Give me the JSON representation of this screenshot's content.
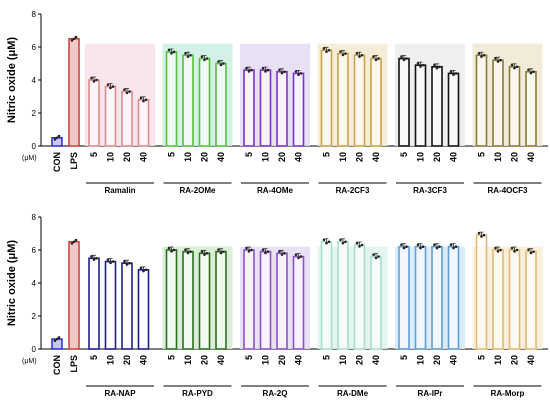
{
  "chart_data": [
    {
      "type": "bar",
      "ylabel": "Nitric oxide (μM)",
      "ylim": [
        0,
        8
      ],
      "yticks": [
        0,
        2,
        4,
        6,
        8
      ],
      "unit_label": "(μM)",
      "controls": [
        {
          "label": "CON",
          "value": 0.5,
          "color": "#2a2ad4",
          "fill": "#c8c8f5"
        },
        {
          "label": "LPS",
          "value": 6.5,
          "color": "#cc3b3b",
          "fill": "#f0c8c8"
        }
      ],
      "concentrations": [
        "5",
        "10",
        "20",
        "40"
      ],
      "groups": [
        {
          "name": "Ramalin",
          "color": "#d98c8c",
          "bg": "#f8e0ea",
          "values": [
            4.0,
            3.6,
            3.3,
            2.8
          ]
        },
        {
          "name": "RA-2OMe",
          "color": "#55c23a",
          "bg": "#ccefe3",
          "values": [
            5.7,
            5.5,
            5.3,
            5.0
          ]
        },
        {
          "name": "RA-4OMe",
          "color": "#7a35c8",
          "bg": "#e4dcf3",
          "values": [
            4.6,
            4.6,
            4.5,
            4.4
          ]
        },
        {
          "name": "RA-2CF3",
          "color": "#c9a44a",
          "bg": "#f5ead2",
          "values": [
            5.8,
            5.6,
            5.5,
            5.3
          ]
        },
        {
          "name": "RA-3CF3",
          "color": "#111111",
          "bg": "#ececec",
          "values": [
            5.3,
            4.9,
            4.8,
            4.4
          ]
        },
        {
          "name": "RA-4OCF3",
          "color": "#8a7a32",
          "bg": "#efe9d3",
          "values": [
            5.5,
            5.2,
            4.8,
            4.5
          ]
        }
      ]
    },
    {
      "type": "bar",
      "ylabel": "Nitric oxide (μM)",
      "ylim": [
        0,
        8
      ],
      "yticks": [
        0,
        2,
        4,
        6,
        8
      ],
      "unit_label": "(μM)",
      "controls": [
        {
          "label": "CON",
          "value": 0.6,
          "color": "#2a2ad4",
          "fill": "#c8c8f5"
        },
        {
          "label": "LPS",
          "value": 6.5,
          "color": "#cc3b3b",
          "fill": "#f0c8c8"
        }
      ],
      "concentrations": [
        "5",
        "10",
        "20",
        "40"
      ],
      "groups": [
        {
          "name": "RA-NAP",
          "color": "#1f1f8c",
          "bg": "#ffffff",
          "values": [
            5.5,
            5.3,
            5.2,
            4.8
          ]
        },
        {
          "name": "RA-PYD",
          "color": "#2f6e1e",
          "bg": "#d2ecd0",
          "values": [
            6.0,
            5.9,
            5.8,
            5.9
          ]
        },
        {
          "name": "RA-2Q",
          "color": "#8a52c4",
          "bg": "#e8dcf3",
          "values": [
            6.0,
            5.9,
            5.8,
            5.6
          ]
        },
        {
          "name": "RA-DMe",
          "color": "#a9ddd1",
          "bg": "#dff3ee",
          "values": [
            6.5,
            6.5,
            6.3,
            5.6
          ]
        },
        {
          "name": "RA-IPr",
          "color": "#5d9fd6",
          "bg": "#d5e9f8",
          "values": [
            6.2,
            6.2,
            6.2,
            6.2
          ]
        },
        {
          "name": "RA-Morp",
          "color": "#e1bb72",
          "bg": "#f8ecd6",
          "values": [
            6.9,
            6.0,
            6.0,
            5.9
          ]
        }
      ]
    }
  ]
}
